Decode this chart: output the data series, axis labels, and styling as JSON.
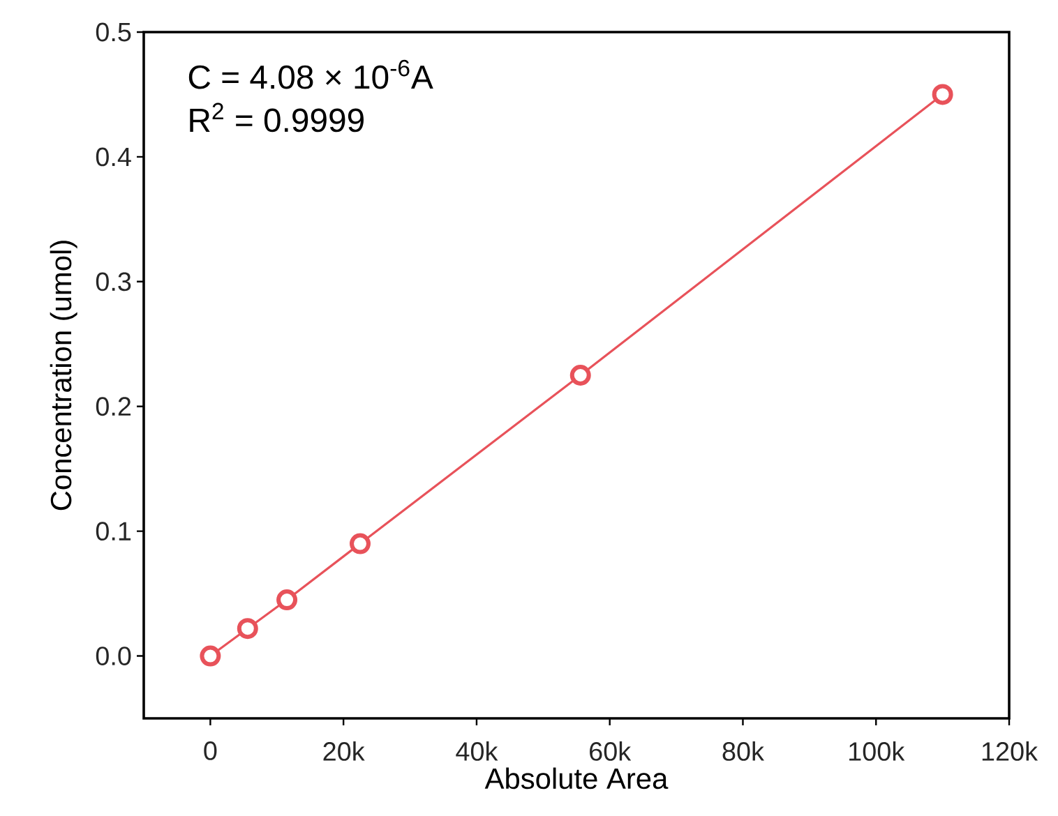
{
  "chart_data": {
    "type": "line",
    "xlabel": "Absolute Area",
    "ylabel": "Concentration (umol)",
    "x": [
      0,
      5600,
      11500,
      22500,
      55600,
      110000
    ],
    "series": [
      {
        "color": "#e8525a",
        "values": [
          0,
          0.022,
          0.045,
          0.09,
          0.225,
          0.45
        ]
      }
    ],
    "marker": "circle",
    "line_style": "solid",
    "grid": false,
    "xlim": [
      -10000,
      120000
    ],
    "xticks": [
      {
        "value": 0,
        "label": "0"
      },
      {
        "value": 20000,
        "label": "20k"
      },
      {
        "value": 40000,
        "label": "40k"
      },
      {
        "value": 60000,
        "label": "60k"
      },
      {
        "value": 80000,
        "label": "80k"
      },
      {
        "value": 100000,
        "label": "100k"
      },
      {
        "value": 120000,
        "label": "120k"
      }
    ],
    "ylim": [
      -0.05,
      0.5
    ],
    "yticks": [
      {
        "value": 0,
        "label": "0.0"
      },
      {
        "value": 0.1,
        "label": "0.1"
      },
      {
        "value": 0.2,
        "label": "0.2"
      },
      {
        "value": 0.3,
        "label": "0.3"
      },
      {
        "value": 0.4,
        "label": "0.4"
      },
      {
        "value": 0.5,
        "label": "0.5"
      }
    ],
    "annotations": [
      "C = 4.08 × 10$^{-6}$A",
      "R$^{2}$ = 0.9999"
    ]
  }
}
